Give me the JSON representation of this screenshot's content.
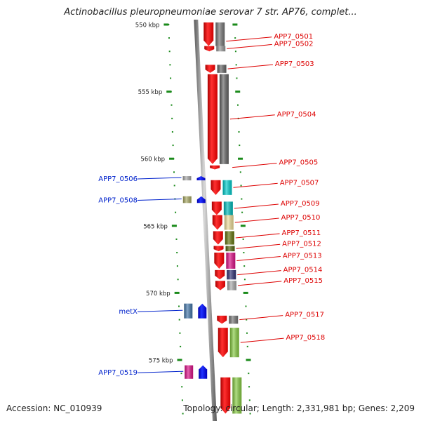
{
  "title": "Actinobacillus pleuropneumoniae serovar 7 str. AP76, complet...",
  "accession": "Accession: NC_010939",
  "topology": "Topology: circular; Length: 2,331,981 bp; Genes: 2,209",
  "colors": {
    "backbone": "#888888",
    "tick": "#1a8a1a",
    "forward_label": "#dd0000",
    "reverse_label": "#0022cc",
    "gene_arrow": "#ff0000",
    "reverse_arrow": "#0000ee"
  },
  "map": {
    "scale": [
      {
        "kbp": 550,
        "label": "550 kbp"
      },
      {
        "kbp": 555,
        "label": "555 kbp"
      },
      {
        "kbp": 560,
        "label": "560 kbp"
      },
      {
        "kbp": 565,
        "label": "565 kbp"
      },
      {
        "kbp": 570,
        "label": "570 kbp"
      },
      {
        "kbp": 575,
        "label": "575 kbp"
      }
    ],
    "forward_genes": [
      {
        "label": "APP7_0501",
        "start_kbp": 549.5,
        "end_kbp": 551.6,
        "color": "#777777"
      },
      {
        "label": "APP7_0502",
        "start_kbp": 551.6,
        "end_kbp": 552.0,
        "color": "#999999"
      },
      {
        "label": "APP7_0503",
        "start_kbp": 553.0,
        "end_kbp": 553.6,
        "color": "#666666"
      },
      {
        "label": "APP7_0504",
        "start_kbp": 553.7,
        "end_kbp": 560.4,
        "color": "#666666"
      },
      {
        "label": "APP7_0505",
        "start_kbp": 560.5,
        "end_kbp": 560.8,
        "color": null
      },
      {
        "label": "APP7_0507",
        "start_kbp": 561.6,
        "end_kbp": 562.7,
        "color": "#00cccc"
      },
      {
        "label": "APP7_0509",
        "start_kbp": 563.2,
        "end_kbp": 564.2,
        "color": "#00bbbb"
      },
      {
        "label": "APP7_0510",
        "start_kbp": 564.2,
        "end_kbp": 565.3,
        "color": "#eedd99"
      },
      {
        "label": "APP7_0511",
        "start_kbp": 565.4,
        "end_kbp": 566.4,
        "color": "#667711"
      },
      {
        "label": "APP7_0512",
        "start_kbp": 566.5,
        "end_kbp": 566.9,
        "color": "#556611"
      },
      {
        "label": "APP7_0513",
        "start_kbp": 567.0,
        "end_kbp": 568.2,
        "color": "#dd1188"
      },
      {
        "label": "APP7_0514",
        "start_kbp": 568.3,
        "end_kbp": 569.0,
        "color": "#333377"
      },
      {
        "label": "APP7_0515",
        "start_kbp": 569.1,
        "end_kbp": 569.8,
        "color": "#aaaaaa"
      },
      {
        "label": "APP7_0517",
        "start_kbp": 571.7,
        "end_kbp": 572.3,
        "color": "#777777"
      },
      {
        "label": "APP7_0518",
        "start_kbp": 572.6,
        "end_kbp": 574.8,
        "color": "#88cc44"
      },
      {
        "label": "",
        "start_kbp": 576.3,
        "end_kbp": 579.0,
        "color": "#88cc44"
      }
    ],
    "reverse_genes": [
      {
        "label": "APP7_0506",
        "start_kbp": 561.3,
        "end_kbp": 561.6,
        "color": "#aaaaaa"
      },
      {
        "label": "APP7_0508",
        "start_kbp": 562.8,
        "end_kbp": 563.3,
        "color": "#aaaa66"
      },
      {
        "label": "metX",
        "start_kbp": 570.8,
        "end_kbp": 571.9,
        "color": "#4477aa"
      },
      {
        "label": "APP7_0519",
        "start_kbp": 575.4,
        "end_kbp": 576.4,
        "color": "#dd1188"
      }
    ]
  }
}
